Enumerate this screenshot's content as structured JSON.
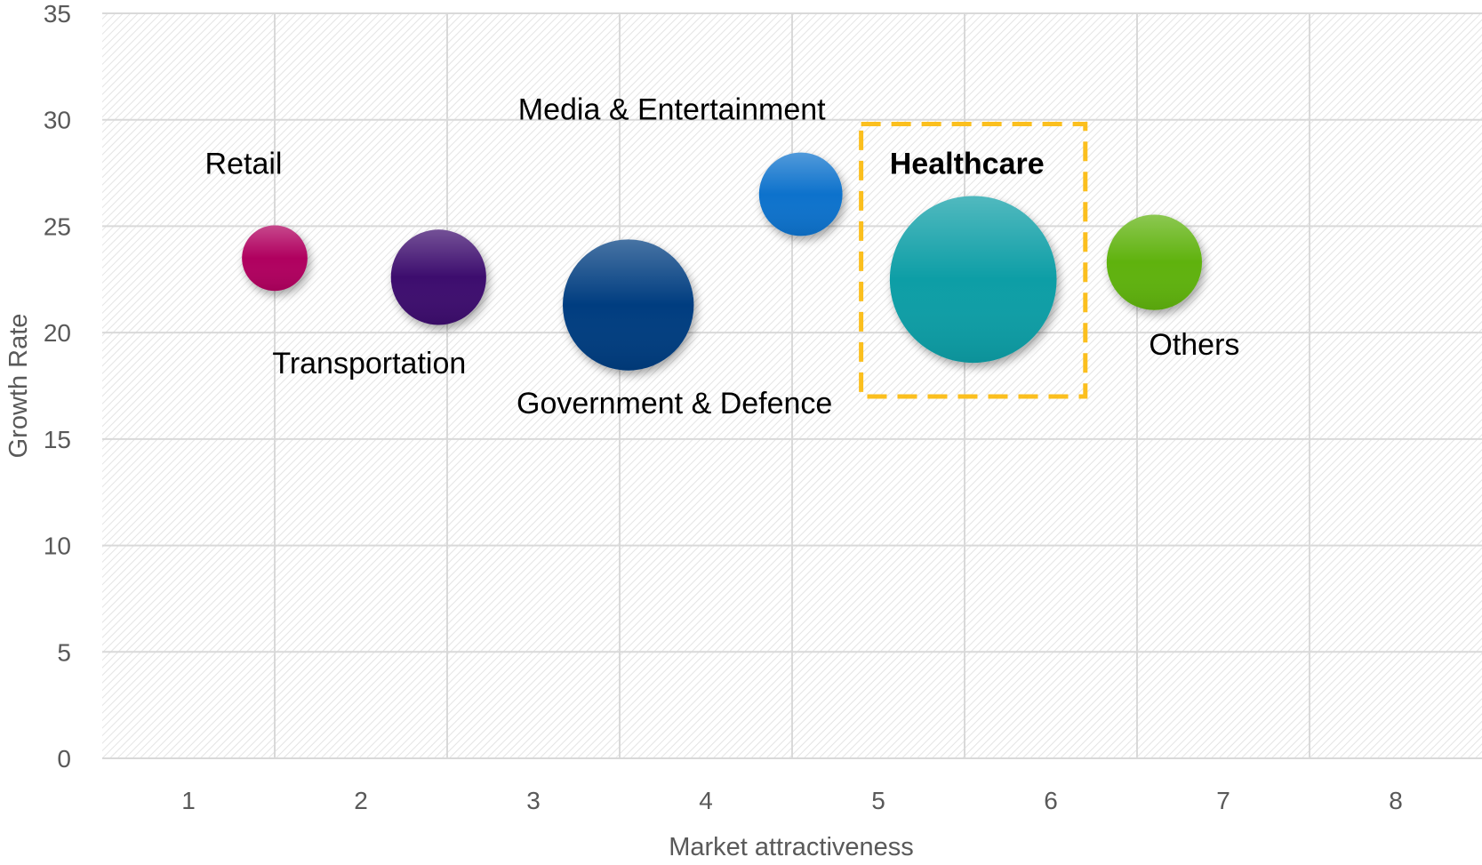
{
  "chart_data": {
    "type": "bubble",
    "xlabel": "Market attractiveness",
    "ylabel": "Growth Rate",
    "xlim": [
      0.5,
      8.5
    ],
    "ylim": [
      0,
      35
    ],
    "x_ticks": [
      1,
      2,
      3,
      4,
      5,
      6,
      7,
      8
    ],
    "y_ticks": [
      0,
      5,
      10,
      15,
      20,
      25,
      30,
      35
    ],
    "grid": true,
    "series": [
      {
        "name": "Retail",
        "x": 1.5,
        "y": 23.5,
        "size": 11,
        "color": "#b0005e",
        "highlight": false
      },
      {
        "name": "Transportation",
        "x": 2.45,
        "y": 22.6,
        "size": 16,
        "color": "#3d0d6e",
        "highlight": false
      },
      {
        "name": "Government & Defence",
        "x": 3.55,
        "y": 21.3,
        "size": 22,
        "color": "#003e80",
        "highlight": false
      },
      {
        "name": "Media & Entertainment",
        "x": 4.55,
        "y": 26.5,
        "size": 14,
        "color": "#0a72cc",
        "highlight": false
      },
      {
        "name": "Healthcare",
        "x": 5.55,
        "y": 22.5,
        "size": 28,
        "color": "#0b9ea6",
        "highlight": true
      },
      {
        "name": "Others",
        "x": 6.6,
        "y": 23.3,
        "size": 16,
        "color": "#5eb20e",
        "highlight": false
      }
    ],
    "highlight_box": {
      "x": [
        4.9,
        6.2
      ],
      "y": [
        17,
        29.8
      ],
      "color": "#fbbf1e"
    }
  }
}
